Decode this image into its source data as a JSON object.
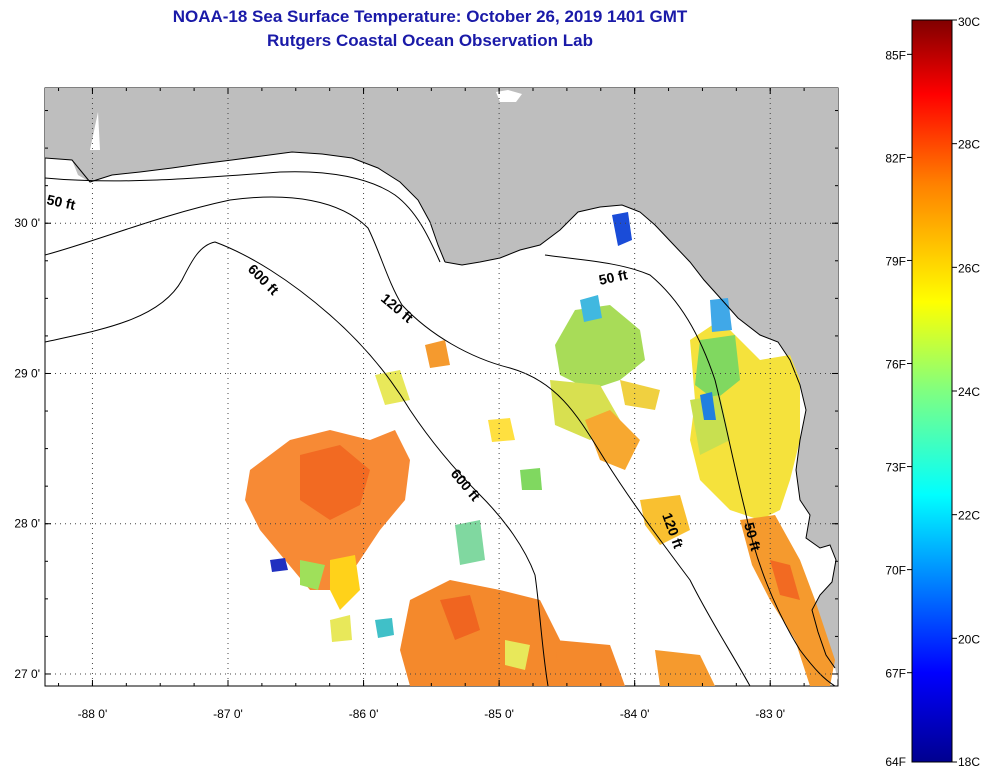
{
  "header": {
    "title": "NOAA-18 Sea Surface Temperature:  October 26, 2019 1401 GMT",
    "subtitle": "Rutgers Coastal Ocean Observation Lab"
  },
  "map": {
    "lat_labels": [
      "30 0'",
      "29 0'",
      "28 0'",
      "27 0'"
    ],
    "lon_labels": [
      "-88 0'",
      "-87 0'",
      "-86 0'",
      "-85 0'",
      "-84 0'",
      "-83 0'"
    ],
    "lat_values": [
      30,
      29,
      28,
      27
    ],
    "lon_values": [
      -88,
      -87,
      -86,
      -85,
      -84,
      -83
    ],
    "lon_range": [
      -88.35,
      -82.5
    ],
    "lat_range": [
      26.92,
      30.9
    ],
    "grid": "dotted",
    "land_color": "#bebebe",
    "no_data_color": "#ffffff",
    "depth_contours": [
      {
        "label": "50 ft",
        "rotation": 12
      },
      {
        "label": "120 ft",
        "rotation": 40
      },
      {
        "label": "600 ft",
        "rotation": 45
      },
      {
        "label": "600 ft",
        "rotation": 50
      },
      {
        "label": "50 ft",
        "rotation": -12
      },
      {
        "label": "120 ft",
        "rotation": 70
      },
      {
        "label": "50 ft",
        "rotation": 75
      }
    ]
  },
  "colorbar": {
    "celsius_labels": [
      "30C",
      "28C",
      "26C",
      "24C",
      "22C",
      "20C",
      "18C"
    ],
    "fahrenheit_labels": [
      "85F",
      "82F",
      "79F",
      "76F",
      "73F",
      "70F",
      "67F",
      "64F"
    ],
    "range_c": [
      18,
      30
    ],
    "colors": [
      "#00008f",
      "#0000ff",
      "#0080ff",
      "#00ffff",
      "#80ff80",
      "#ffff00",
      "#ff8000",
      "#ff0000",
      "#800000"
    ]
  }
}
